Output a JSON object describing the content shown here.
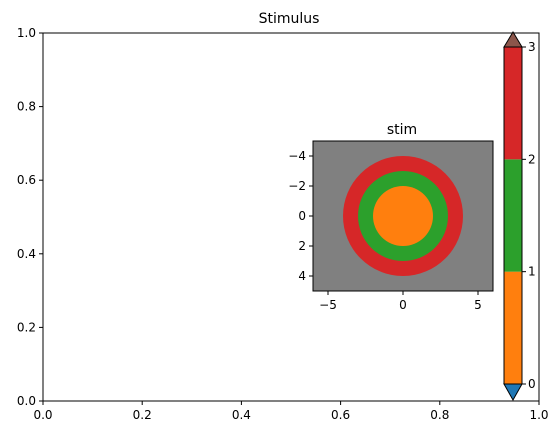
{
  "chart_data": [
    {
      "type": "line",
      "title": "Stimulus",
      "xlim": [
        0,
        1
      ],
      "ylim": [
        0,
        1
      ],
      "xticks": [
        "0.0",
        "0.2",
        "0.4",
        "0.6",
        "0.8",
        "1.0"
      ],
      "yticks": [
        "0.0",
        "0.2",
        "0.4",
        "0.6",
        "0.8",
        "1.0"
      ],
      "series": [],
      "grid": false
    },
    {
      "type": "heatmap",
      "title": "stim",
      "xlim": [
        -6,
        6
      ],
      "ylim": [
        5,
        -5
      ],
      "xticks": [
        "−5",
        "0",
        "5"
      ],
      "yticks": [
        "−4",
        "−2",
        "0",
        "2",
        "4"
      ],
      "background_value": "gray",
      "rings": [
        {
          "outer_radius": 4,
          "value": 3,
          "color": "#d62728"
        },
        {
          "outer_radius": 3,
          "value": 2,
          "color": "#2ca02c"
        },
        {
          "outer_radius": 2,
          "value": 1,
          "color": "#ff7f0e"
        }
      ],
      "background_color": "#808080"
    },
    {
      "type": "colorbar",
      "boundaries": [
        0,
        1,
        2,
        3
      ],
      "tick_labels": [
        "0",
        "1",
        "2",
        "3"
      ],
      "bands": [
        {
          "from": 0,
          "to": 1,
          "color": "#ff7f0e"
        },
        {
          "from": 1,
          "to": 2,
          "color": "#2ca02c"
        },
        {
          "from": 2,
          "to": 3,
          "color": "#d62728"
        }
      ],
      "extend_under_color": "#1f77b4",
      "extend_over_color": "#8c564b"
    }
  ]
}
